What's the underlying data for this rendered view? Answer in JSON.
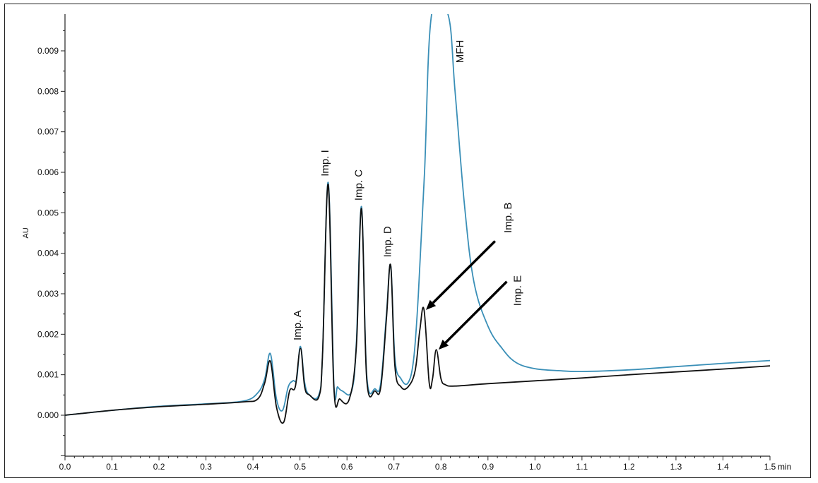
{
  "chart_data": {
    "type": "line",
    "title": "",
    "xlabel": "min",
    "ylabel": "AU",
    "xlim": [
      0.0,
      1.5
    ],
    "ylim": [
      -0.001,
      0.0099
    ],
    "grid": false,
    "x_ticks": [
      "0.0",
      "0.1",
      "0.2",
      "0.3",
      "0.4",
      "0.5",
      "0.6",
      "0.7",
      "0.8",
      "0.9",
      "1.0",
      "1.1",
      "1.2",
      "1.3",
      "1.4",
      "1.5"
    ],
    "y_ticks": [
      "0.000",
      "0.001",
      "0.002",
      "0.003",
      "0.004",
      "0.005",
      "0.006",
      "0.007",
      "0.008",
      "0.009"
    ],
    "series": [
      {
        "color": "#3a8fb7",
        "points": [
          [
            0.0,
            0.0
          ],
          [
            0.1,
            0.00012
          ],
          [
            0.2,
            0.00022
          ],
          [
            0.3,
            0.00028
          ],
          [
            0.38,
            0.00035
          ],
          [
            0.41,
            0.00055
          ],
          [
            0.425,
            0.0009
          ],
          [
            0.437,
            0.00152
          ],
          [
            0.45,
            0.0004
          ],
          [
            0.463,
            0.00012
          ],
          [
            0.475,
            0.0007
          ],
          [
            0.485,
            0.00085
          ],
          [
            0.493,
            0.0009
          ],
          [
            0.501,
            0.0017
          ],
          [
            0.51,
            0.0008
          ],
          [
            0.52,
            0.0005
          ],
          [
            0.54,
            0.0005
          ],
          [
            0.548,
            0.0015
          ],
          [
            0.56,
            0.00575
          ],
          [
            0.572,
            0.0008
          ],
          [
            0.58,
            0.0007
          ],
          [
            0.59,
            0.0006
          ],
          [
            0.61,
            0.0006
          ],
          [
            0.62,
            0.0018
          ],
          [
            0.631,
            0.00515
          ],
          [
            0.642,
            0.001
          ],
          [
            0.66,
            0.00065
          ],
          [
            0.672,
            0.0008
          ],
          [
            0.684,
            0.0025
          ],
          [
            0.693,
            0.0037
          ],
          [
            0.702,
            0.0014
          ],
          [
            0.715,
            0.0009
          ],
          [
            0.73,
            0.0008
          ],
          [
            0.742,
            0.0014
          ],
          [
            0.752,
            0.003
          ],
          [
            0.765,
            0.006
          ],
          [
            0.78,
            0.0099
          ],
          [
            0.815,
            0.0099
          ],
          [
            0.83,
            0.008
          ],
          [
            0.85,
            0.0052
          ],
          [
            0.87,
            0.0033
          ],
          [
            0.9,
            0.0022
          ],
          [
            0.93,
            0.00165
          ],
          [
            0.96,
            0.0013
          ],
          [
            1.0,
            0.00115
          ],
          [
            1.05,
            0.0011
          ],
          [
            1.1,
            0.00108
          ],
          [
            1.2,
            0.00112
          ],
          [
            1.3,
            0.0012
          ],
          [
            1.4,
            0.00128
          ],
          [
            1.5,
            0.00135
          ]
        ]
      },
      {
        "color": "#111111",
        "points": [
          [
            0.0,
            0.0
          ],
          [
            0.1,
            0.00012
          ],
          [
            0.2,
            0.00021
          ],
          [
            0.3,
            0.00027
          ],
          [
            0.38,
            0.00033
          ],
          [
            0.41,
            0.0004
          ],
          [
            0.425,
            0.0008
          ],
          [
            0.437,
            0.00133
          ],
          [
            0.45,
            0.0002
          ],
          [
            0.465,
            -0.00018
          ],
          [
            0.478,
            0.0006
          ],
          [
            0.49,
            0.0007
          ],
          [
            0.501,
            0.00165
          ],
          [
            0.51,
            0.0007
          ],
          [
            0.52,
            0.0005
          ],
          [
            0.54,
            0.00045
          ],
          [
            0.548,
            0.0015
          ],
          [
            0.56,
            0.0057
          ],
          [
            0.572,
            0.0007
          ],
          [
            0.585,
            0.0004
          ],
          [
            0.605,
            0.0004
          ],
          [
            0.62,
            0.0017
          ],
          [
            0.631,
            0.0051
          ],
          [
            0.642,
            0.0009
          ],
          [
            0.66,
            0.0006
          ],
          [
            0.672,
            0.0007
          ],
          [
            0.684,
            0.0024
          ],
          [
            0.693,
            0.0037
          ],
          [
            0.702,
            0.0012
          ],
          [
            0.715,
            0.0007
          ],
          [
            0.73,
            0.0007
          ],
          [
            0.745,
            0.0011
          ],
          [
            0.755,
            0.0021
          ],
          [
            0.764,
            0.0026
          ],
          [
            0.775,
            0.0008
          ],
          [
            0.782,
            0.0009
          ],
          [
            0.79,
            0.00162
          ],
          [
            0.8,
            0.0009
          ],
          [
            0.81,
            0.00075
          ],
          [
            0.83,
            0.00072
          ],
          [
            0.9,
            0.00078
          ],
          [
            1.0,
            0.00085
          ],
          [
            1.1,
            0.00092
          ],
          [
            1.2,
            0.001
          ],
          [
            1.3,
            0.00107
          ],
          [
            1.4,
            0.00114
          ],
          [
            1.5,
            0.00122
          ]
        ]
      }
    ],
    "annotations": [
      {
        "text": "Imp. A",
        "x": 0.502,
        "y": 0.00185
      },
      {
        "text": "Imp. I",
        "x": 0.561,
        "y": 0.0059
      },
      {
        "text": "Imp. C",
        "x": 0.632,
        "y": 0.0053
      },
      {
        "text": "Imp. D",
        "x": 0.694,
        "y": 0.0039
      },
      {
        "text": "Imp. B",
        "x": 0.95,
        "y": 0.0045
      },
      {
        "text": "Imp. E",
        "x": 0.97,
        "y": 0.0027
      },
      {
        "text": "MFH",
        "x": 0.848,
        "y": 0.0087
      }
    ],
    "arrows": [
      {
        "from": [
          0.915,
          0.0043
        ],
        "to": [
          0.768,
          0.0026
        ]
      },
      {
        "from": [
          0.94,
          0.0033
        ],
        "to": [
          0.795,
          0.00162
        ]
      }
    ]
  }
}
